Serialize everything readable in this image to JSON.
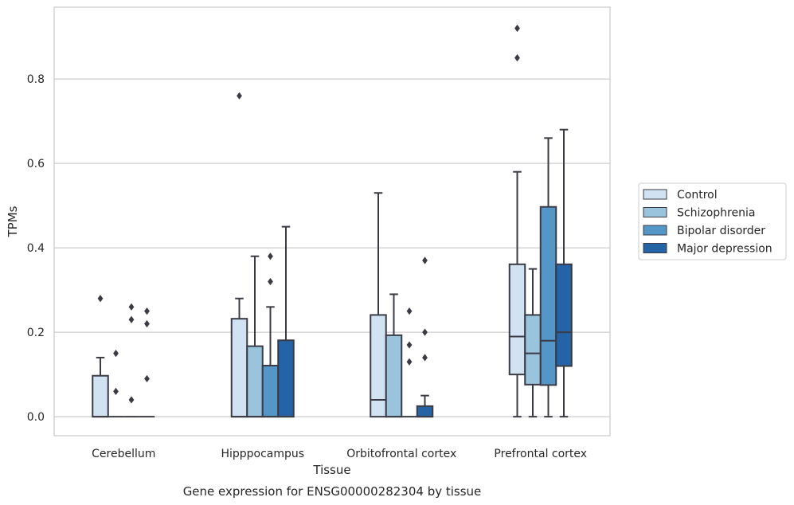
{
  "chart_data": {
    "type": "boxplot",
    "caption": "Gene expression for ENSG00000282304 by tissue",
    "xlabel": "Tissue",
    "ylabel": "TPMs",
    "ylim": [
      -0.045,
      0.97
    ],
    "yticks": [
      "0.0",
      "0.2",
      "0.4",
      "0.6",
      "0.8"
    ],
    "ytick_values": [
      0.0,
      0.2,
      0.4,
      0.6,
      0.8
    ],
    "grid": true,
    "legend_position": "right",
    "categories": [
      "Cerebellum",
      "Hipppocampus",
      "Orbitofrontal cortex",
      "Prefrontal cortex"
    ],
    "series": [
      {
        "name": "Control",
        "color": "#d1e2f2",
        "boxes": [
          {
            "q1": 0.0,
            "median": 0.0,
            "q3": 0.097,
            "whisker_low": 0.0,
            "whisker_high": 0.14,
            "outliers": [
              0.28
            ]
          },
          {
            "q1": 0.0,
            "median": 0.0,
            "q3": 0.232,
            "whisker_low": 0.0,
            "whisker_high": 0.28,
            "outliers": [
              0.76
            ]
          },
          {
            "q1": 0.0,
            "median": 0.04,
            "q3": 0.241,
            "whisker_low": 0.0,
            "whisker_high": 0.53,
            "outliers": []
          },
          {
            "q1": 0.1,
            "median": 0.19,
            "q3": 0.361,
            "whisker_low": 0.0,
            "whisker_high": 0.58,
            "outliers": [
              0.85,
              0.92
            ]
          }
        ]
      },
      {
        "name": "Schizophrenia",
        "color": "#9ac4de",
        "boxes": [
          {
            "q1": 0.0,
            "median": 0.0,
            "q3": 0.0,
            "whisker_low": 0.0,
            "whisker_high": 0.0,
            "outliers": [
              0.15,
              0.06
            ]
          },
          {
            "q1": 0.0,
            "median": 0.0,
            "q3": 0.167,
            "whisker_low": 0.0,
            "whisker_high": 0.38,
            "outliers": []
          },
          {
            "q1": 0.0,
            "median": 0.0,
            "q3": 0.193,
            "whisker_low": 0.0,
            "whisker_high": 0.29,
            "outliers": []
          },
          {
            "q1": 0.076,
            "median": 0.15,
            "q3": 0.241,
            "whisker_low": 0.0,
            "whisker_high": 0.35,
            "outliers": []
          }
        ]
      },
      {
        "name": "Bipolar disorder",
        "color": "#5596c8",
        "boxes": [
          {
            "q1": 0.0,
            "median": 0.0,
            "q3": 0.0,
            "whisker_low": 0.0,
            "whisker_high": 0.0,
            "outliers": [
              0.26,
              0.23,
              0.04
            ]
          },
          {
            "q1": 0.0,
            "median": 0.0,
            "q3": 0.121,
            "whisker_low": 0.0,
            "whisker_high": 0.26,
            "outliers": [
              0.38,
              0.32
            ]
          },
          {
            "q1": 0.0,
            "median": 0.0,
            "q3": 0.0,
            "whisker_low": 0.0,
            "whisker_high": 0.0,
            "outliers": [
              0.25,
              0.17,
              0.13
            ]
          },
          {
            "q1": 0.075,
            "median": 0.18,
            "q3": 0.497,
            "whisker_low": 0.0,
            "whisker_high": 0.66,
            "outliers": []
          }
        ]
      },
      {
        "name": "Major depression",
        "color": "#2463a5",
        "boxes": [
          {
            "q1": 0.0,
            "median": 0.0,
            "q3": 0.0,
            "whisker_low": 0.0,
            "whisker_high": 0.0,
            "outliers": [
              0.25,
              0.22,
              0.09
            ]
          },
          {
            "q1": 0.0,
            "median": 0.0,
            "q3": 0.181,
            "whisker_low": 0.0,
            "whisker_high": 0.45,
            "outliers": []
          },
          {
            "q1": 0.0,
            "median": 0.0,
            "q3": 0.025,
            "whisker_low": 0.0,
            "whisker_high": 0.05,
            "outliers": [
              0.37,
              0.2,
              0.14
            ]
          },
          {
            "q1": 0.12,
            "median": 0.2,
            "q3": 0.361,
            "whisker_low": 0.0,
            "whisker_high": 0.68,
            "outliers": []
          }
        ]
      }
    ]
  }
}
